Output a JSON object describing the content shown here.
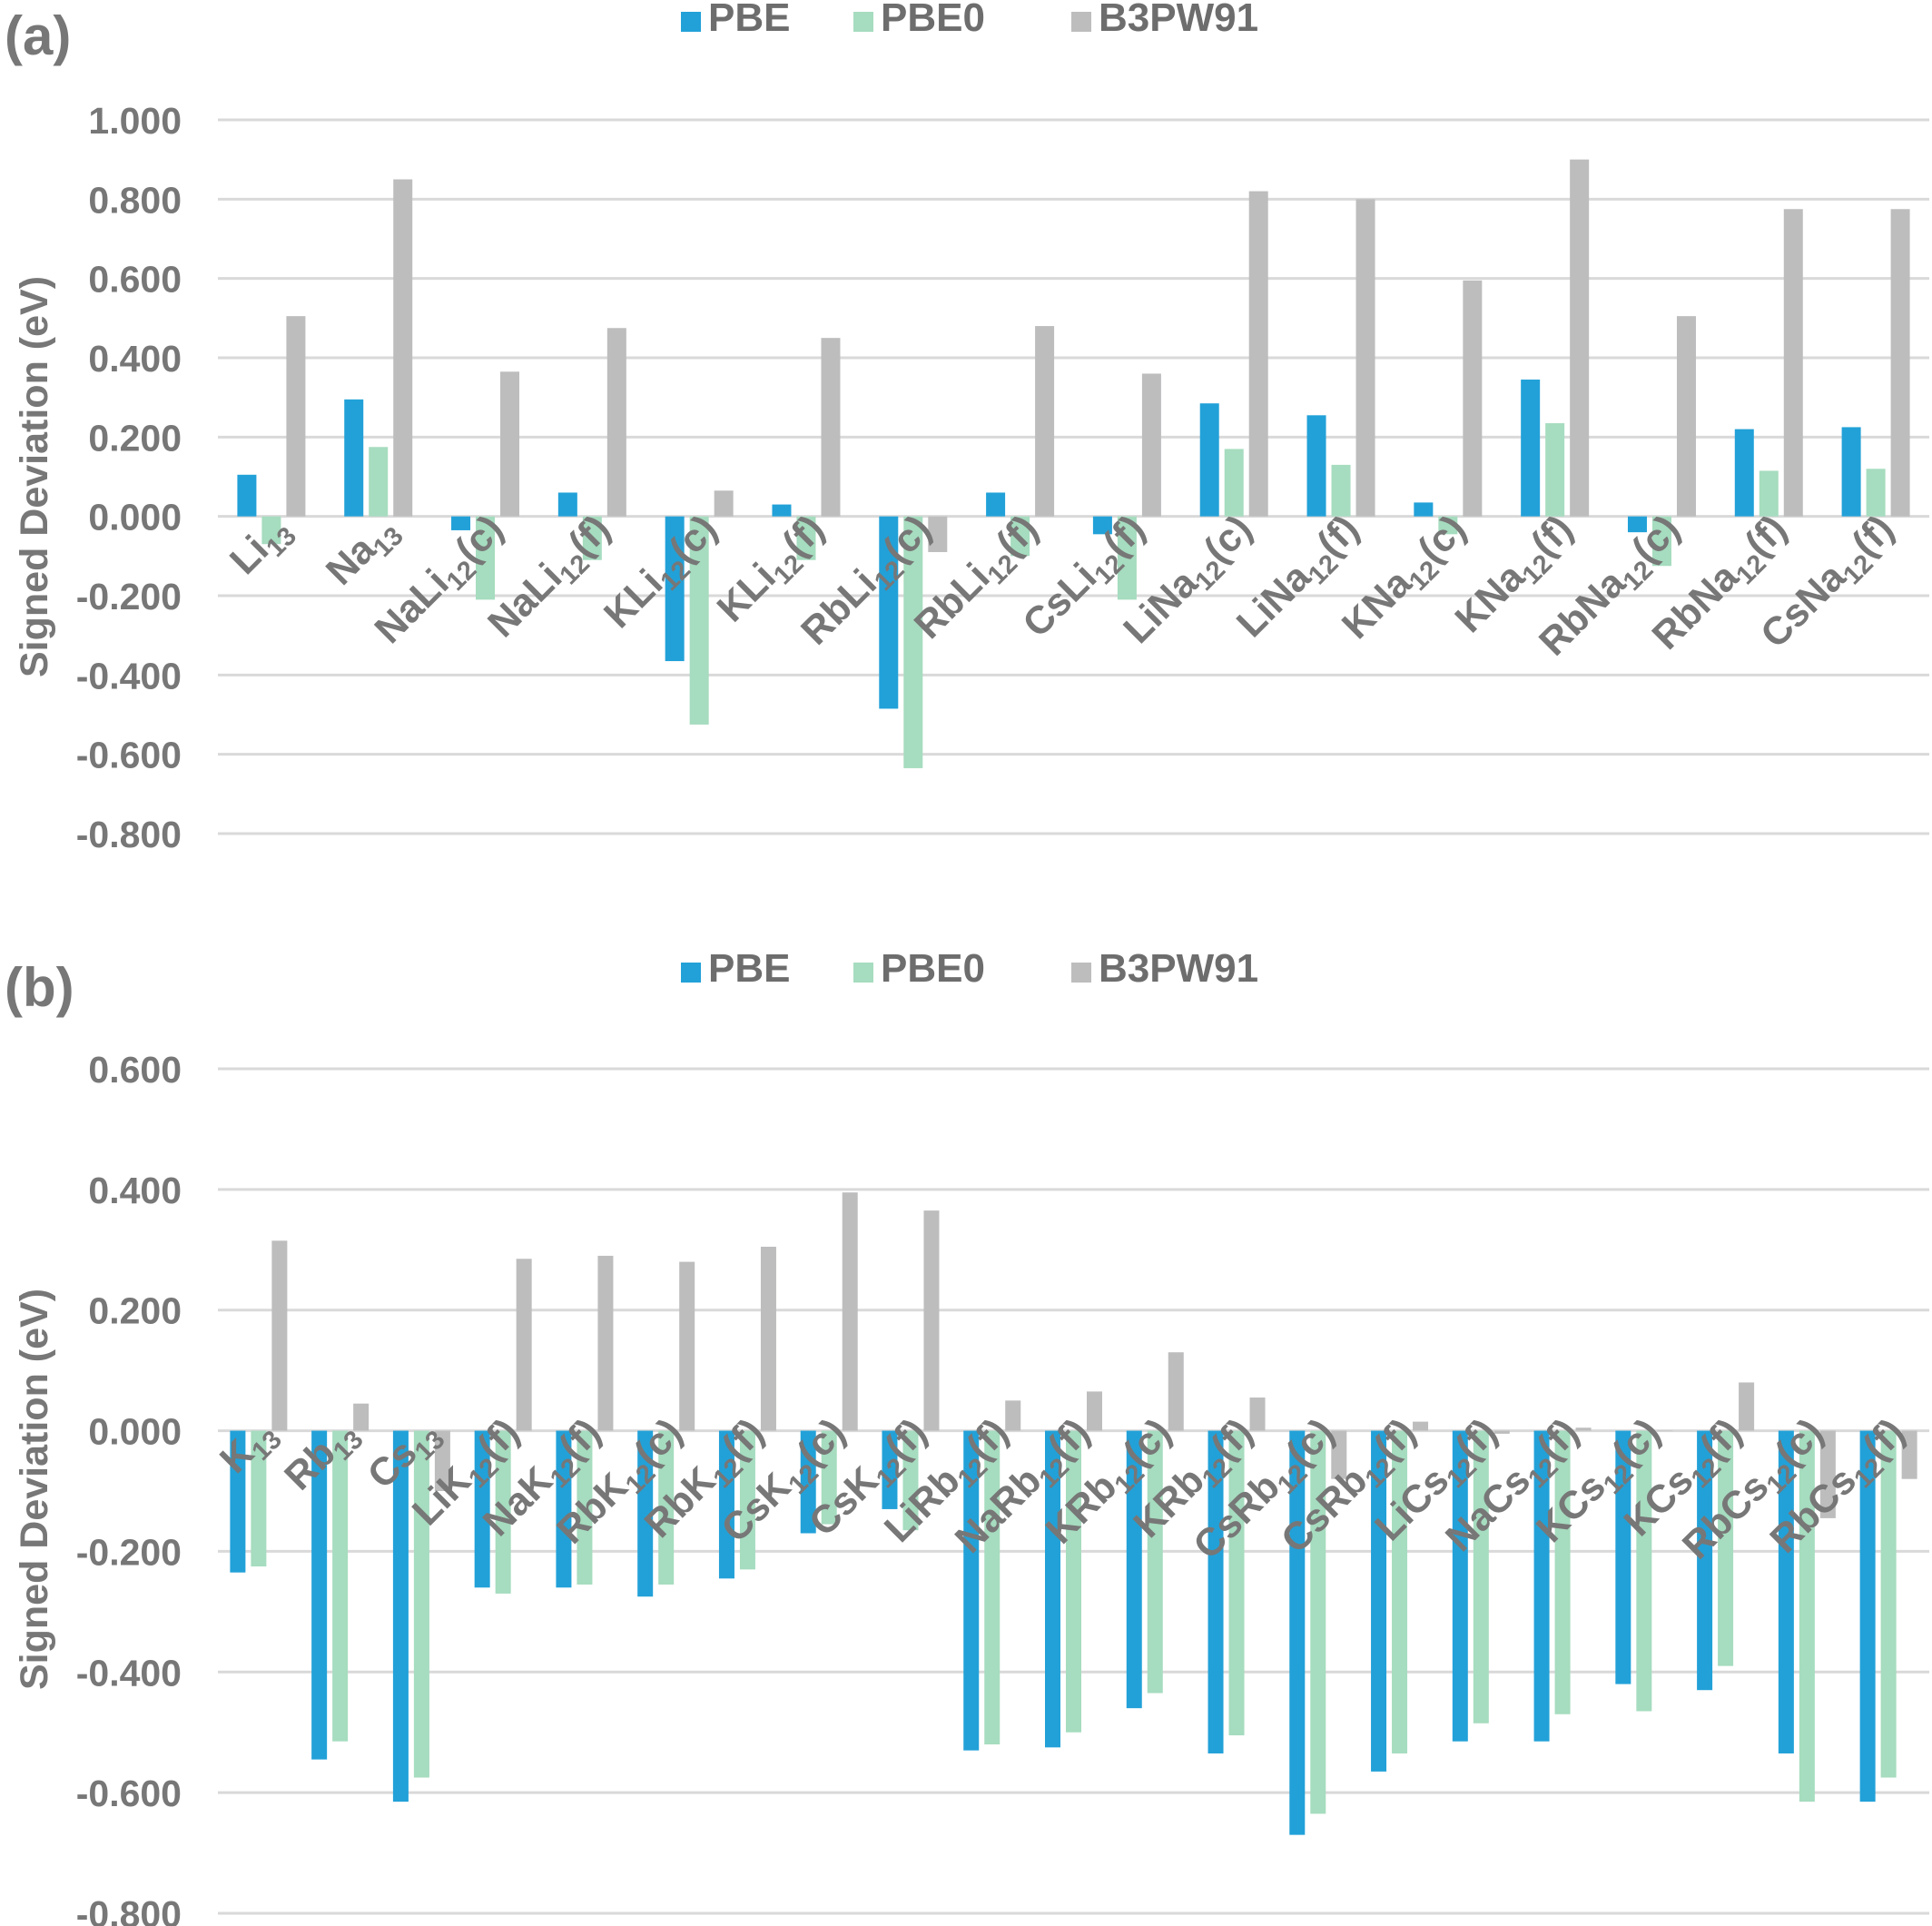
{
  "colors": {
    "PBE": "#22a1d8",
    "PBE0": "#a6dcbf",
    "B3PW91": "#bdbdbe",
    "grid": "#d9d9d9",
    "text": "#777777"
  },
  "chart_data": [
    {
      "type": "bar",
      "panel_label": "(a)",
      "ylabel": "Signed Deviation (eV)",
      "ylim": [
        -0.8,
        1.0
      ],
      "yticks": [
        "1.000",
        "0.800",
        "0.600",
        "0.400",
        "0.200",
        "0.000",
        "-0.200",
        "-0.400",
        "-0.600",
        "-0.800"
      ],
      "grid": true,
      "legend_position": "top-center",
      "categories": [
        {
          "base": "Li",
          "sub": "13",
          "suffix": ""
        },
        {
          "base": "Na",
          "sub": "13",
          "suffix": ""
        },
        {
          "base": "NaLi",
          "sub": "12",
          "suffix": "(c)"
        },
        {
          "base": "NaLi",
          "sub": "12",
          "suffix": "(f)"
        },
        {
          "base": "KLi",
          "sub": "12",
          "suffix": "(c)"
        },
        {
          "base": "KLi",
          "sub": "12",
          "suffix": "(f)"
        },
        {
          "base": "RbLi",
          "sub": "12",
          "suffix": "(c)"
        },
        {
          "base": "RbLi",
          "sub": "12",
          "suffix": "(f)"
        },
        {
          "base": "CsLi",
          "sub": "12",
          "suffix": "(f)"
        },
        {
          "base": "LiNa",
          "sub": "12",
          "suffix": "(c)"
        },
        {
          "base": "LiNa",
          "sub": "12",
          "suffix": "(f)"
        },
        {
          "base": "KNa",
          "sub": "12",
          "suffix": "(c)"
        },
        {
          "base": "KNa",
          "sub": "12",
          "suffix": "(f)"
        },
        {
          "base": "RbNa",
          "sub": "12",
          "suffix": "(c)"
        },
        {
          "base": "RbNa",
          "sub": "12",
          "suffix": "(f)"
        },
        {
          "base": "CsNa",
          "sub": "12",
          "suffix": "(f)"
        }
      ],
      "series": [
        {
          "name": "PBE",
          "values": [
            0.105,
            0.295,
            -0.035,
            0.06,
            -0.365,
            0.03,
            -0.485,
            0.06,
            -0.045,
            0.285,
            0.255,
            0.035,
            0.345,
            -0.04,
            0.22,
            0.225
          ]
        },
        {
          "name": "PBE0",
          "values": [
            -0.07,
            0.175,
            -0.21,
            -0.11,
            -0.525,
            -0.11,
            -0.635,
            -0.1,
            -0.21,
            0.17,
            0.13,
            -0.045,
            0.235,
            -0.125,
            0.115,
            0.12
          ]
        },
        {
          "name": "B3PW91",
          "values": [
            0.505,
            0.85,
            0.365,
            0.475,
            0.065,
            0.45,
            -0.09,
            0.48,
            0.36,
            0.82,
            0.8,
            0.595,
            0.9,
            0.505,
            0.775,
            0.775
          ]
        }
      ]
    },
    {
      "type": "bar",
      "panel_label": "(b)",
      "ylabel": "Signed Deviation (eV)",
      "ylim": [
        -0.8,
        0.6
      ],
      "yticks": [
        "0.600",
        "0.400",
        "0.200",
        "0.000",
        "-0.200",
        "-0.400",
        "-0.600",
        "-0.800"
      ],
      "grid": true,
      "legend_position": "top-center",
      "categories": [
        {
          "base": "K",
          "sub": "13",
          "suffix": ""
        },
        {
          "base": "Rb",
          "sub": "13",
          "suffix": ""
        },
        {
          "base": "Cs",
          "sub": "13",
          "suffix": ""
        },
        {
          "base": "LiK",
          "sub": "12",
          "suffix": "(f)"
        },
        {
          "base": "NaK",
          "sub": "12",
          "suffix": "(f)"
        },
        {
          "base": "RbK",
          "sub": "12",
          "suffix": "(c)"
        },
        {
          "base": "RbK",
          "sub": "12",
          "suffix": "(f)"
        },
        {
          "base": "CsK",
          "sub": "12",
          "suffix": "(c)"
        },
        {
          "base": "CsK",
          "sub": "12",
          "suffix": "(f)"
        },
        {
          "base": "LiRb",
          "sub": "12",
          "suffix": "(f)"
        },
        {
          "base": "NaRb",
          "sub": "12",
          "suffix": "(f)"
        },
        {
          "base": "KRb",
          "sub": "12",
          "suffix": "(c)"
        },
        {
          "base": "KRb",
          "sub": "12",
          "suffix": "(f)"
        },
        {
          "base": "CsRb",
          "sub": "12",
          "suffix": "(c)"
        },
        {
          "base": "CsRb",
          "sub": "12",
          "suffix": "(f)"
        },
        {
          "base": "LiCs",
          "sub": "12",
          "suffix": "(f)"
        },
        {
          "base": "NaCs",
          "sub": "12",
          "suffix": "(f)"
        },
        {
          "base": "KCs",
          "sub": "12",
          "suffix": "(c)"
        },
        {
          "base": "KCs",
          "sub": "12",
          "suffix": "(f)"
        },
        {
          "base": "RbCs",
          "sub": "12",
          "suffix": "(c)"
        },
        {
          "base": "RbCs",
          "sub": "12",
          "suffix": "(f)"
        }
      ],
      "series": [
        {
          "name": "PBE",
          "values": [
            -0.235,
            -0.545,
            -0.615,
            -0.26,
            -0.26,
            -0.275,
            -0.245,
            -0.17,
            -0.13,
            -0.53,
            -0.525,
            -0.46,
            -0.535,
            -0.67,
            -0.565,
            -0.515,
            -0.515,
            -0.42,
            -0.43,
            -0.535,
            -0.615
          ]
        },
        {
          "name": "PBE0",
          "values": [
            -0.225,
            -0.515,
            -0.575,
            -0.27,
            -0.255,
            -0.255,
            -0.23,
            -0.155,
            -0.165,
            -0.52,
            -0.5,
            -0.435,
            -0.505,
            -0.635,
            -0.535,
            -0.485,
            -0.47,
            -0.465,
            -0.39,
            -0.615,
            -0.575
          ]
        },
        {
          "name": "B3PW91",
          "values": [
            0.315,
            0.045,
            -0.1,
            0.285,
            0.29,
            0.28,
            0.305,
            0.395,
            0.365,
            0.05,
            0.065,
            0.13,
            0.055,
            -0.08,
            0.015,
            -0.005,
            0.005,
            0.0,
            0.08,
            -0.145,
            -0.08
          ]
        }
      ]
    }
  ]
}
